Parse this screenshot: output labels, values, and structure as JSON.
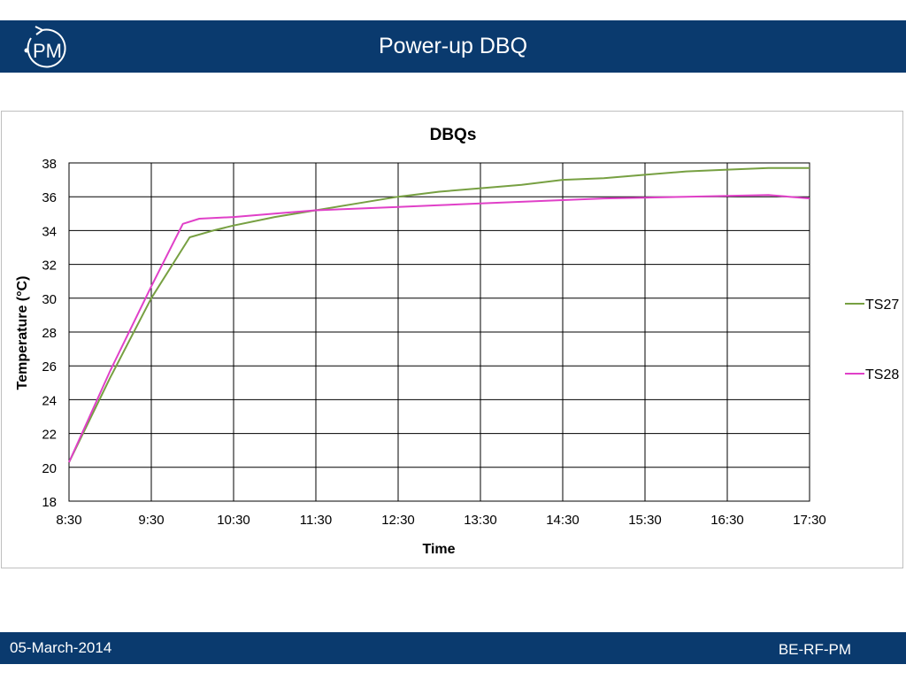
{
  "header": {
    "title": "Power-up DBQ",
    "logo_text": "PM"
  },
  "footer": {
    "date": "05-March-2014",
    "department": "BE-RF-PM"
  },
  "colors": {
    "header_bg": "#0a3a6e",
    "ts27": "#77a042",
    "ts28": "#e040c8"
  },
  "chart_data": {
    "type": "line",
    "title": "DBQs",
    "xlabel": "Time",
    "ylabel": "Temperature (°C)",
    "ylim": [
      18,
      38
    ],
    "yticks": [
      "18",
      "20",
      "22",
      "24",
      "26",
      "28",
      "30",
      "32",
      "34",
      "36",
      "38"
    ],
    "xticks": [
      "8:30",
      "9:30",
      "10:30",
      "11:30",
      "12:30",
      "13:30",
      "14:30",
      "15:30",
      "16:30",
      "17:30"
    ],
    "grid": true,
    "legend": "right",
    "series": [
      {
        "name": "TS27",
        "color": "#77a042",
        "points": [
          [
            "8:30",
            20.3
          ],
          [
            "9:00",
            25.3
          ],
          [
            "9:30",
            30.0
          ],
          [
            "9:58",
            33.6
          ],
          [
            "10:15",
            34.0
          ],
          [
            "10:30",
            34.3
          ],
          [
            "11:00",
            34.8
          ],
          [
            "11:30",
            35.2
          ],
          [
            "12:00",
            35.6
          ],
          [
            "12:30",
            36.0
          ],
          [
            "13:00",
            36.3
          ],
          [
            "13:30",
            36.5
          ],
          [
            "14:00",
            36.7
          ],
          [
            "14:30",
            37.0
          ],
          [
            "15:00",
            37.1
          ],
          [
            "15:30",
            37.3
          ],
          [
            "16:00",
            37.5
          ],
          [
            "16:30",
            37.6
          ],
          [
            "17:00",
            37.7
          ],
          [
            "17:30",
            37.7
          ]
        ]
      },
      {
        "name": "TS28",
        "color": "#e040c8",
        "points": [
          [
            "8:30",
            20.3
          ],
          [
            "9:00",
            25.7
          ],
          [
            "9:30",
            30.7
          ],
          [
            "9:53",
            34.4
          ],
          [
            "10:05",
            34.7
          ],
          [
            "10:30",
            34.8
          ],
          [
            "11:00",
            35.0
          ],
          [
            "11:30",
            35.2
          ],
          [
            "12:00",
            35.3
          ],
          [
            "12:30",
            35.4
          ],
          [
            "13:00",
            35.5
          ],
          [
            "13:30",
            35.6
          ],
          [
            "14:00",
            35.7
          ],
          [
            "14:30",
            35.8
          ],
          [
            "15:00",
            35.9
          ],
          [
            "15:30",
            35.95
          ],
          [
            "16:00",
            36.0
          ],
          [
            "16:30",
            36.05
          ],
          [
            "17:00",
            36.1
          ],
          [
            "17:30",
            35.9
          ]
        ]
      }
    ]
  }
}
